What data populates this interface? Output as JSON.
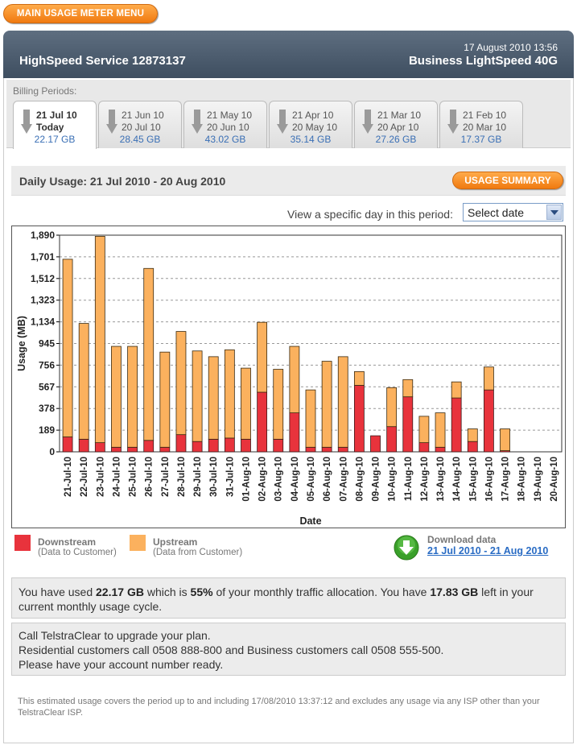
{
  "menu": {
    "main_usage_meter_menu": "MAIN USAGE METER MENU"
  },
  "header": {
    "service": "HighSpeed Service 12873137",
    "datetime": "17 August 2010 13:56",
    "plan": "Business LightSpeed 40G"
  },
  "billing": {
    "label": "Billing Periods:",
    "tabs": [
      {
        "l1": "21 Jul 10",
        "l2": "Today",
        "gb": "22.17 GB",
        "active": true
      },
      {
        "l1": "21 Jun 10",
        "l2": "20 Jul 10",
        "gb": "28.45 GB"
      },
      {
        "l1": "21 May 10",
        "l2": "20 Jun 10",
        "gb": "43.02 GB"
      },
      {
        "l1": "21 Apr 10",
        "l2": "20 May 10",
        "gb": "35.14 GB"
      },
      {
        "l1": "21 Mar 10",
        "l2": "20 Apr 10",
        "gb": "27.26 GB"
      },
      {
        "l1": "21 Feb 10",
        "l2": "20 Mar 10",
        "gb": "17.37 GB"
      }
    ]
  },
  "daily": {
    "title": "Daily Usage: 21 Jul 2010 - 20 Aug 2010",
    "summary_button": "USAGE SUMMARY",
    "view_label": "View a specific day in this period:",
    "select_value": "Select date"
  },
  "chart_data": {
    "type": "bar",
    "stacked": true,
    "xlabel": "Date",
    "ylabel": "Usage (MB)",
    "ylim": [
      0,
      1890
    ],
    "yticks": [
      0,
      189,
      378,
      567,
      756,
      945,
      1134,
      1323,
      1512,
      1701,
      1890
    ],
    "ytick_labels": [
      "0",
      "189",
      "378",
      "567",
      "756",
      "945",
      "1,134",
      "1,323",
      "1,512",
      "1,701",
      "1,890"
    ],
    "grid": true,
    "categories": [
      "21-Jul-10",
      "22-Jul-10",
      "23-Jul-10",
      "24-Jul-10",
      "25-Jul-10",
      "26-Jul-10",
      "27-Jul-10",
      "28-Jul-10",
      "29-Jul-10",
      "30-Jul-10",
      "31-Jul-10",
      "01-Aug-10",
      "02-Aug-10",
      "03-Aug-10",
      "04-Aug-10",
      "05-Aug-10",
      "06-Aug-10",
      "07-Aug-10",
      "08-Aug-10",
      "09-Aug-10",
      "10-Aug-10",
      "11-Aug-10",
      "12-Aug-10",
      "13-Aug-10",
      "14-Aug-10",
      "15-Aug-10",
      "16-Aug-10",
      "17-Aug-10",
      "18-Aug-10",
      "19-Aug-10",
      "20-Aug-10"
    ],
    "series": [
      {
        "name": "Downstream",
        "color": "#e8333c",
        "values": [
          130,
          110,
          80,
          40,
          40,
          100,
          40,
          150,
          90,
          110,
          120,
          110,
          520,
          110,
          340,
          40,
          40,
          40,
          580,
          140,
          220,
          480,
          80,
          40,
          470,
          90,
          540,
          10,
          0,
          0,
          0
        ]
      },
      {
        "name": "Upstream",
        "color": "#fbb15e",
        "values": [
          1550,
          1010,
          1800,
          880,
          880,
          1500,
          830,
          900,
          790,
          720,
          770,
          620,
          610,
          610,
          580,
          500,
          750,
          790,
          120,
          0,
          340,
          150,
          230,
          300,
          140,
          110,
          200,
          190,
          0,
          0,
          0
        ]
      }
    ]
  },
  "legend": {
    "downstream": {
      "title": "Downstream",
      "sub": "(Data to Customer)",
      "color": "#e8333c"
    },
    "upstream": {
      "title": "Upstream",
      "sub": "(Data from Customer)",
      "color": "#fbb15e"
    }
  },
  "download": {
    "title": "Download data",
    "link": "21 Jul 2010 - 21 Aug 2010"
  },
  "info": {
    "t1": "You have used ",
    "used": "22.17 GB",
    "t2": " which is ",
    "pct": "55%",
    "t3": " of your monthly traffic allocation. You have ",
    "left": "17.83 GB",
    "t4": " left in your current monthly usage cycle."
  },
  "call": {
    "line1": "Call TelstraClear to upgrade your plan.",
    "line2": "Residential customers call 0508 888-800 and Business customers call 0508 555-500.",
    "line3": "Please have your account number ready."
  },
  "footnote": "This estimated usage covers the period up to and including 17/08/2010 13:37:12 and excludes any usage via any ISP other than your TelstraClear ISP."
}
